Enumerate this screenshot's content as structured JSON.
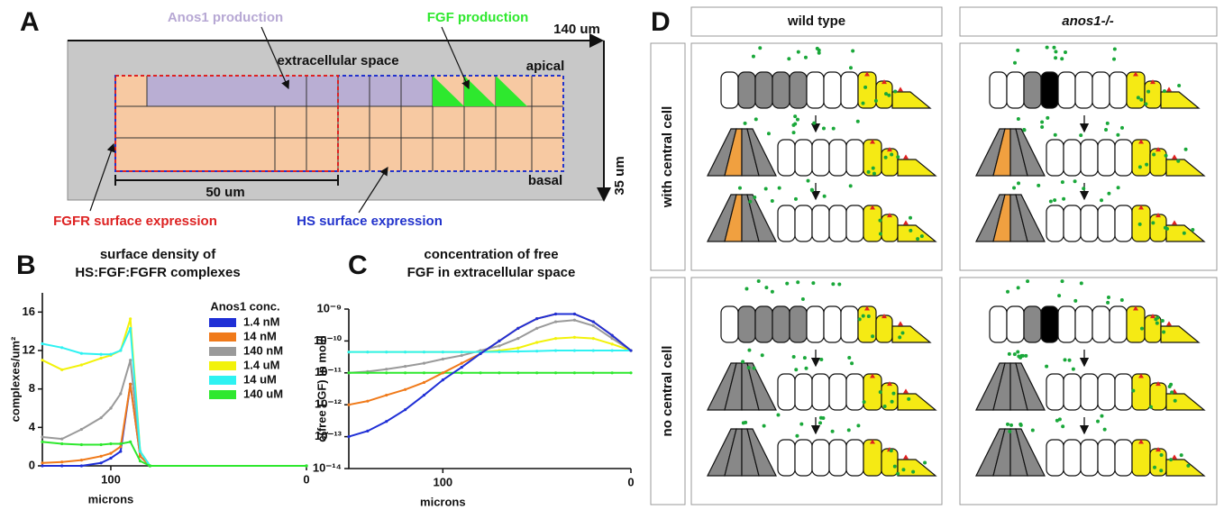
{
  "panel_a": {
    "label": "A",
    "anos1_production": "Anos1 production",
    "fgf_production": "FGF production",
    "width": "140 um",
    "height": "35 um",
    "extracellular_space": "extracellular space",
    "apical": "apical",
    "basal": "basal",
    "fgfr_length": "50 um",
    "fgfr_expression": "FGFR surface expression",
    "hs_expression": "HS surface expression"
  },
  "chart_data": [
    {
      "type": "line",
      "panel": "B",
      "title": [
        "surface density of",
        "HS:FGF:FGFR complexes"
      ],
      "xlabel": "microns",
      "ylabel": "complexes/um²",
      "legend_title": "Anos1 conc.",
      "x": [
        135,
        125,
        115,
        105,
        100,
        95,
        90,
        85,
        80,
        0
      ],
      "xlim": [
        135,
        0
      ],
      "xticks": [
        100,
        0
      ],
      "ylim": [
        0,
        18
      ],
      "yticks": [
        0,
        4,
        8,
        12,
        16
      ],
      "series": [
        {
          "name": "1.4 nM",
          "color": "#1f2fd6",
          "values": [
            0,
            0,
            0,
            0.3,
            0.8,
            1.5,
            8.5,
            1,
            0,
            0
          ]
        },
        {
          "name": "14 nM",
          "color": "#f07a1a",
          "values": [
            0.3,
            0.4,
            0.6,
            1,
            1.3,
            2,
            8.5,
            1,
            0,
            0
          ]
        },
        {
          "name": "140 nM",
          "color": "#9a9a9a",
          "values": [
            3,
            2.8,
            3.8,
            5,
            6,
            7.5,
            11,
            1.5,
            0,
            0
          ]
        },
        {
          "name": "1.4 uM",
          "color": "#f2f20a",
          "values": [
            11,
            10,
            10.5,
            11.2,
            11.5,
            12,
            15.3,
            1.5,
            0,
            0
          ]
        },
        {
          "name": "14 uM",
          "color": "#2ef2f2",
          "values": [
            12.7,
            12.3,
            11.7,
            11.6,
            11.6,
            12,
            14.3,
            1.5,
            0,
            0
          ]
        },
        {
          "name": "140 uM",
          "color": "#2ee82e",
          "values": [
            2.5,
            2.3,
            2.2,
            2.2,
            2.3,
            2.3,
            2.5,
            0.5,
            0,
            0
          ]
        }
      ]
    },
    {
      "type": "line",
      "panel": "C",
      "title": [
        "concentration of free",
        "FGF in extracellular space"
      ],
      "xlabel": "microns",
      "ylabel": "c(free FGF) in mol/l",
      "log_y": true,
      "x": [
        150,
        140,
        130,
        120,
        110,
        100,
        90,
        80,
        70,
        60,
        50,
        40,
        30,
        20,
        10,
        0
      ],
      "xlim": [
        150,
        0
      ],
      "xticks": [
        100,
        0
      ],
      "ylim": [
        1e-14,
        1e-09
      ],
      "yticks": [
        {
          "value": 1e-14,
          "label": "10⁻¹⁴"
        },
        {
          "value": 1e-13,
          "label": "10⁻¹³"
        },
        {
          "value": 1e-12,
          "label": "10⁻¹²"
        },
        {
          "value": 1e-11,
          "label": "10⁻¹¹"
        },
        {
          "value": 1e-10,
          "label": "10⁻¹⁰"
        },
        {
          "value": 1e-09,
          "label": "10⁻⁹"
        }
      ],
      "series": [
        {
          "color": "#9a9a9a",
          "values": [
            1e-11,
            1.1e-11,
            1.3e-11,
            1.6e-11,
            2e-11,
            2.7e-11,
            3.5e-11,
            5e-11,
            7e-11,
            1.2e-10,
            2.5e-10,
            4e-10,
            4.5e-10,
            3e-10,
            1.2e-10,
            5e-11
          ]
        },
        {
          "color": "#f2f20a",
          "values": [
            4.5e-11,
            4.5e-11,
            4.5e-11,
            4.5e-11,
            4.5e-11,
            4.5e-11,
            4.5e-11,
            4.5e-11,
            5e-11,
            6e-11,
            9e-11,
            1.2e-10,
            1.3e-10,
            1.2e-10,
            8e-11,
            5e-11
          ]
        },
        {
          "color": "#2ef2f2",
          "values": [
            4.5e-11,
            4.5e-11,
            4.5e-11,
            4.5e-11,
            4.5e-11,
            4.5e-11,
            4.5e-11,
            4.5e-11,
            4.6e-11,
            4.7e-11,
            4.8e-11,
            5e-11,
            5e-11,
            5e-11,
            5e-11,
            5e-11
          ]
        },
        {
          "color": "#2ee82e",
          "values": [
            1e-11,
            1e-11,
            1e-11,
            1e-11,
            1e-11,
            1e-11,
            1e-11,
            1e-11,
            1e-11,
            1e-11,
            1e-11,
            1e-11,
            1e-11,
            1e-11,
            1e-11,
            1e-11
          ]
        },
        {
          "color": "#f07a1a",
          "values": [
            1e-12,
            1.3e-12,
            2e-12,
            3e-12,
            5e-12,
            1e-11,
            2e-11,
            4e-11,
            1e-10,
            2.5e-10,
            5e-10,
            7e-10,
            7e-10,
            4e-10,
            1.5e-10,
            5e-11
          ]
        },
        {
          "color": "#1f2fd6",
          "values": [
            1e-13,
            1.5e-13,
            3e-13,
            7e-13,
            2e-12,
            6e-12,
            1.5e-11,
            4e-11,
            1e-10,
            2.5e-10,
            5e-10,
            7e-10,
            7e-10,
            4e-10,
            1.5e-10,
            5e-11
          ]
        }
      ]
    }
  ],
  "panel_d": {
    "label": "D",
    "columns": [
      "wild type",
      "anos1-/-"
    ],
    "rows": [
      "with central cell",
      "no central cell"
    ]
  }
}
